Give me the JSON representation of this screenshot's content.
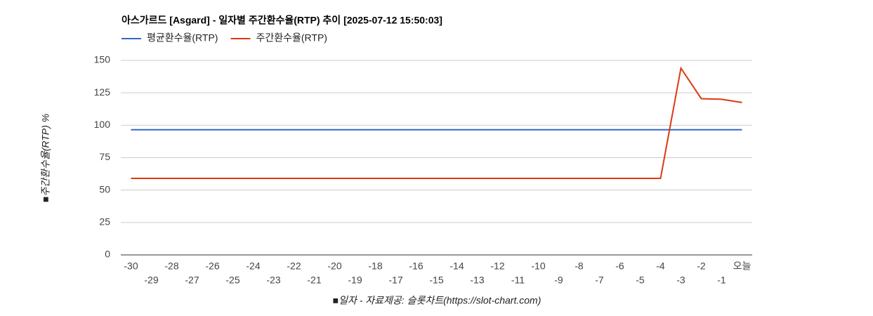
{
  "chart_data": {
    "type": "line",
    "title": "아스가르드 [Asgard] - 일자별 주간환수율(RTP) 추이 [2025-07-12 15:50:03]",
    "x_label": "■일자 - 자료제공: 슬롯차트(https://slot-chart.com)",
    "y_label": "■주간환수율(RTP) %",
    "categories": [
      "-30",
      "-29",
      "-28",
      "-27",
      "-26",
      "-25",
      "-24",
      "-23",
      "-22",
      "-21",
      "-20",
      "-19",
      "-18",
      "-17",
      "-16",
      "-15",
      "-14",
      "-13",
      "-12",
      "-11",
      "-10",
      "-9",
      "-8",
      "-7",
      "-6",
      "-5",
      "-4",
      "-3",
      "-2",
      "-1",
      "오늘"
    ],
    "series": [
      {
        "name": "평균환수율(RTP)",
        "color": "#3366cc",
        "values": [
          96.5,
          96.5,
          96.5,
          96.5,
          96.5,
          96.5,
          96.5,
          96.5,
          96.5,
          96.5,
          96.5,
          96.5,
          96.5,
          96.5,
          96.5,
          96.5,
          96.5,
          96.5,
          96.5,
          96.5,
          96.5,
          96.5,
          96.5,
          96.5,
          96.5,
          96.5,
          96.5,
          96.5,
          96.5,
          96.5,
          96.5
        ]
      },
      {
        "name": "주간환수율(RTP)",
        "color": "#dc3912",
        "values": [
          59,
          59,
          59,
          59,
          59,
          59,
          59,
          59,
          59,
          59,
          59,
          59,
          59,
          59,
          59,
          59,
          59,
          59,
          59,
          59,
          59,
          59,
          59,
          59,
          59,
          59,
          59,
          144,
          120.5,
          120,
          117.5
        ]
      }
    ],
    "ylim": [
      0,
      150
    ],
    "yticks": [
      0,
      25,
      50,
      75,
      100,
      125,
      150
    ],
    "grid": true
  }
}
